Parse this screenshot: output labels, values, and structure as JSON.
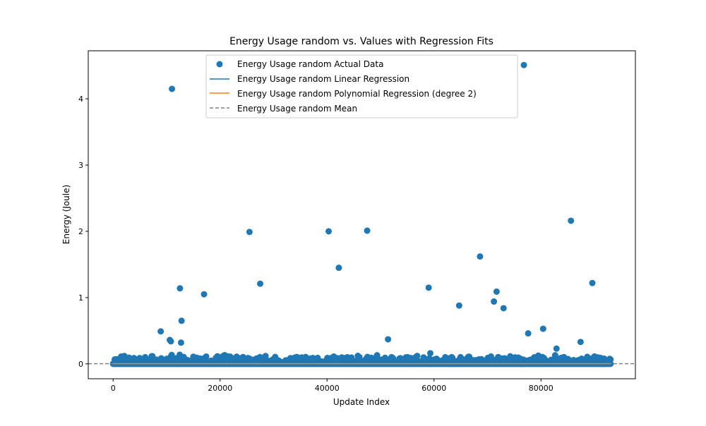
{
  "chart_data": {
    "type": "scatter",
    "title": "Energy Usage random vs. Values with Regression Fits",
    "xlabel": "Update Index",
    "ylabel": "Energy (Joule)",
    "xlim": [
      -4650,
      97650
    ],
    "ylim": [
      -0.225,
      4.725
    ],
    "x_ticks": [
      0,
      20000,
      40000,
      60000,
      80000
    ],
    "y_ticks": [
      0,
      1,
      2,
      3,
      4
    ],
    "grid": false,
    "legend_position": "upper-center",
    "colors": {
      "actual": "#1f77b4",
      "linear": "#1f77b4",
      "poly": "#ff7f0e",
      "mean": "#808080"
    },
    "series": [
      {
        "name": "Energy Usage random Actual Data",
        "kind": "scatter"
      },
      {
        "name": "Energy Usage random Linear Regression",
        "kind": "line"
      },
      {
        "name": "Energy Usage random Polynomial Regression (degree 2)",
        "kind": "line"
      },
      {
        "name": "Energy Usage random Mean",
        "kind": "dashed-line"
      }
    ],
    "outliers": [
      {
        "x": 8900,
        "y": 0.49
      },
      {
        "x": 10600,
        "y": 0.36
      },
      {
        "x": 10800,
        "y": 0.34
      },
      {
        "x": 11000,
        "y": 4.15
      },
      {
        "x": 12500,
        "y": 1.14
      },
      {
        "x": 12700,
        "y": 0.32
      },
      {
        "x": 12800,
        "y": 0.65
      },
      {
        "x": 17000,
        "y": 1.05
      },
      {
        "x": 25500,
        "y": 1.99
      },
      {
        "x": 27500,
        "y": 1.21
      },
      {
        "x": 40300,
        "y": 2.0
      },
      {
        "x": 42200,
        "y": 1.45
      },
      {
        "x": 47500,
        "y": 2.01
      },
      {
        "x": 51400,
        "y": 0.37
      },
      {
        "x": 59000,
        "y": 1.15
      },
      {
        "x": 59300,
        "y": 0.16
      },
      {
        "x": 64700,
        "y": 0.88
      },
      {
        "x": 68600,
        "y": 1.62
      },
      {
        "x": 71200,
        "y": 0.94
      },
      {
        "x": 71700,
        "y": 1.09
      },
      {
        "x": 73000,
        "y": 0.84
      },
      {
        "x": 76800,
        "y": 4.51
      },
      {
        "x": 77600,
        "y": 0.46
      },
      {
        "x": 80400,
        "y": 0.53
      },
      {
        "x": 82900,
        "y": 0.23
      },
      {
        "x": 85600,
        "y": 2.16
      },
      {
        "x": 87400,
        "y": 0.33
      },
      {
        "x": 89600,
        "y": 1.22
      }
    ],
    "bulk_range": {
      "x_min": 0,
      "x_max": 93000,
      "y_min": 0.0,
      "y_max_typical": 0.14
    },
    "linear_fit": {
      "x": [
        0,
        93000
      ],
      "y": [
        0.003,
        0.003
      ]
    },
    "poly_fit": {
      "x": [
        0,
        93000
      ],
      "y": [
        0.003,
        0.003
      ]
    },
    "mean_value": 0.003
  }
}
